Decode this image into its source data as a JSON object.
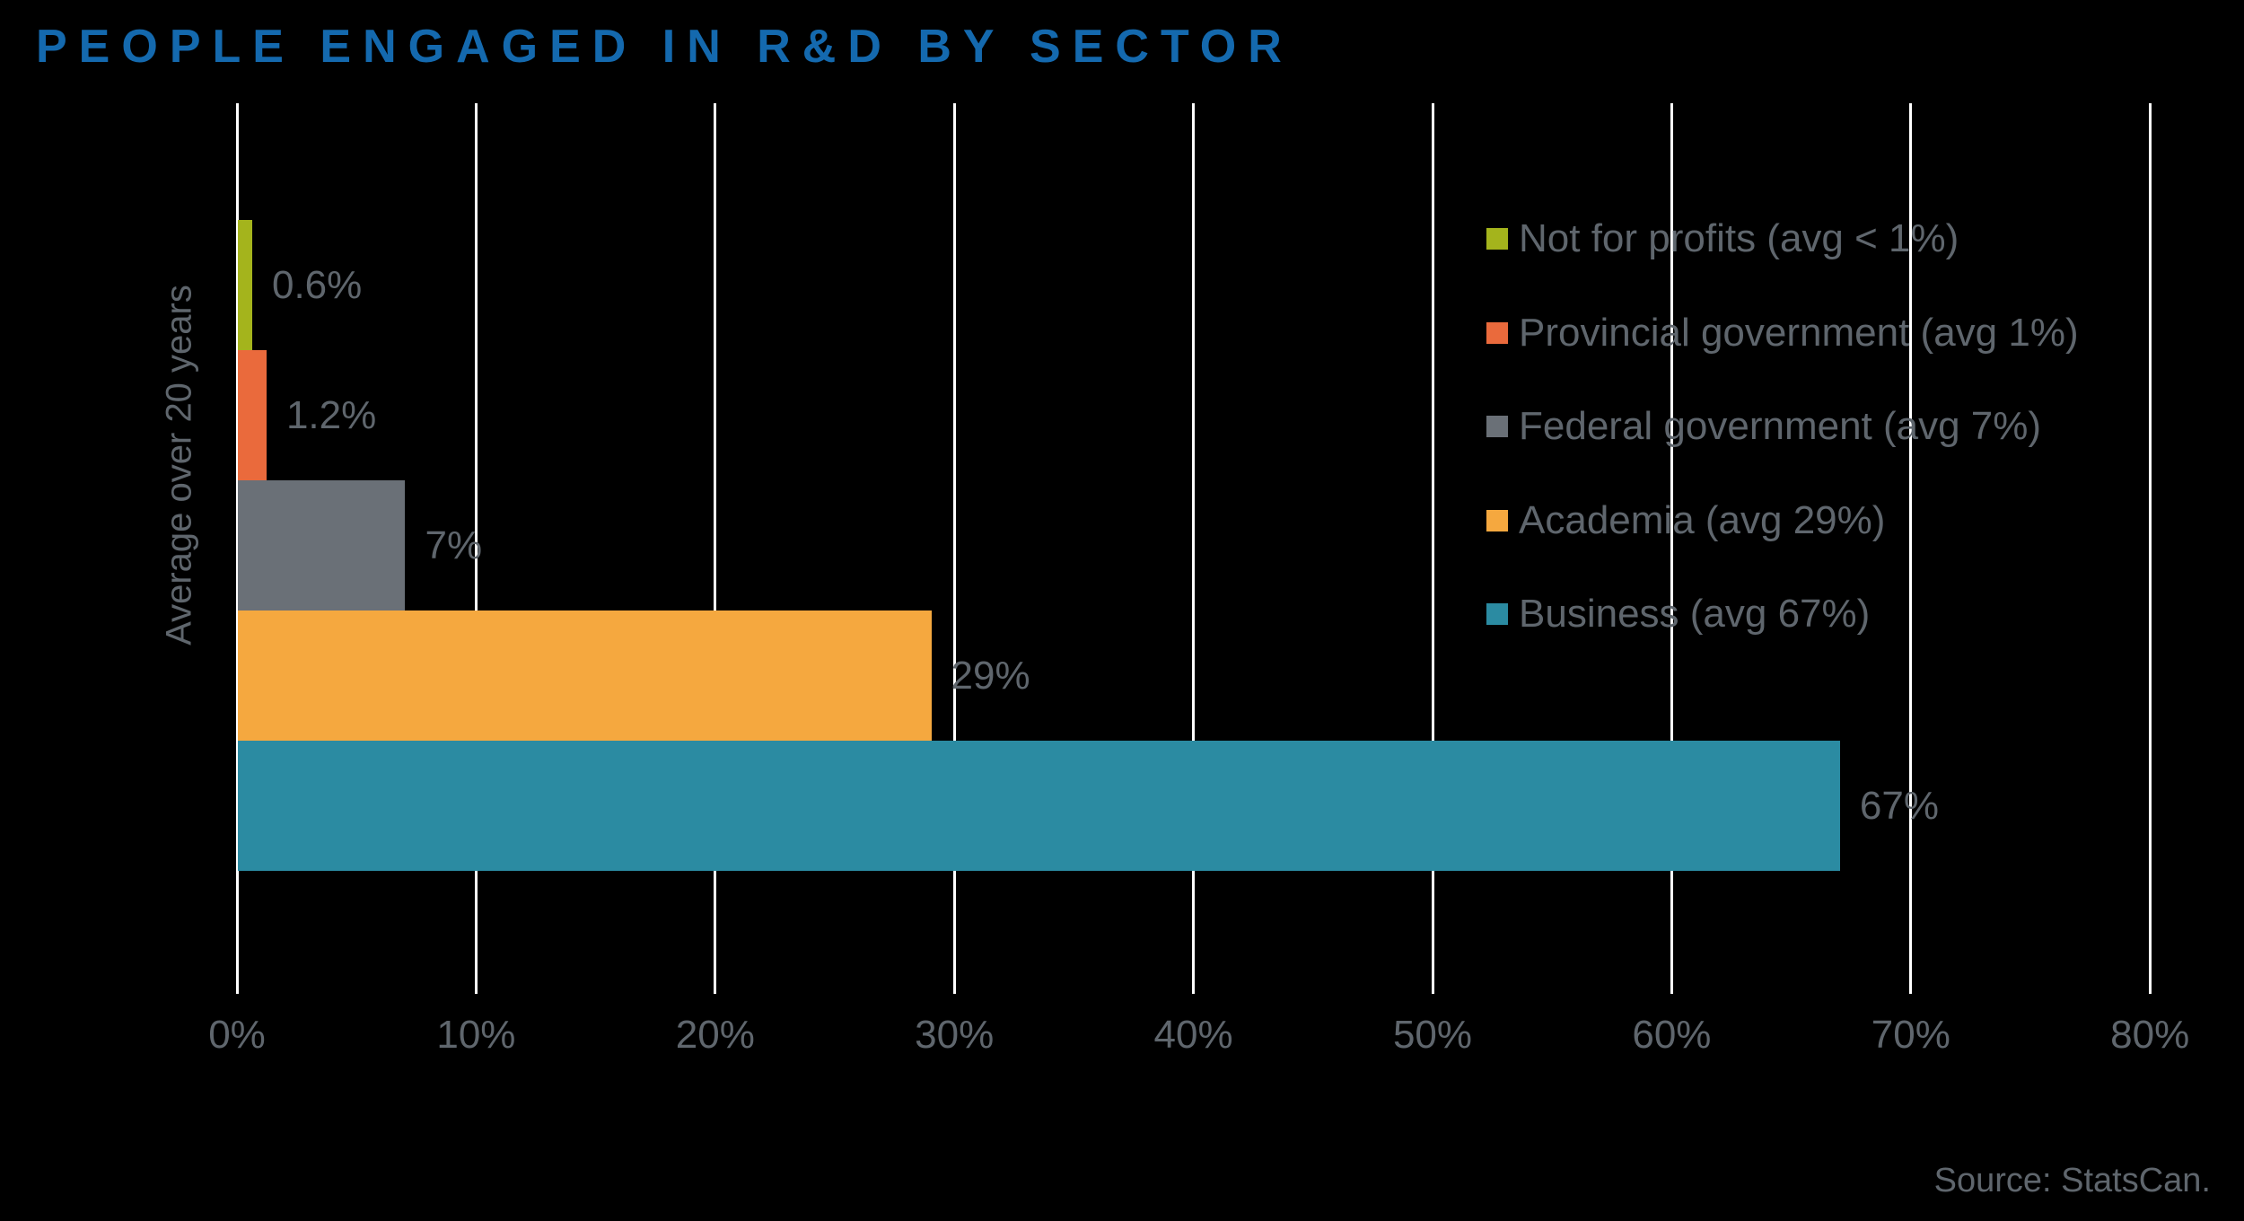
{
  "page": {
    "background_color": "#000000",
    "text_color": "#5f666d",
    "grid_color": "#ffffff",
    "title_color": "#1469ae"
  },
  "source_note": "Source: StatsCan.",
  "chart_data": {
    "type": "bar",
    "orientation": "horizontal",
    "title": "PEOPLE ENGAGED IN R&D BY SECTOR",
    "xlabel": "",
    "ylabel": "Average over 20 years",
    "xlim": [
      0,
      80
    ],
    "grid": true,
    "legend_position": "right-inside",
    "xticks": [
      {
        "value": 0,
        "label": "0%"
      },
      {
        "value": 10,
        "label": "10%"
      },
      {
        "value": 20,
        "label": "20%"
      },
      {
        "value": 30,
        "label": "30%"
      },
      {
        "value": 40,
        "label": "40%"
      },
      {
        "value": 50,
        "label": "50%"
      },
      {
        "value": 60,
        "label": "60%"
      },
      {
        "value": 70,
        "label": "70%"
      },
      {
        "value": 80,
        "label": "80%"
      }
    ],
    "series": [
      {
        "name": "Not for profits (avg < 1%)",
        "value": 0.6,
        "data_label": "0.6%",
        "color": "#a4b41c",
        "slug": "not-for-profits"
      },
      {
        "name": "Provincial government (avg 1%)",
        "value": 1.2,
        "data_label": "1.2%",
        "color": "#ea6a3c",
        "slug": "provincial-government"
      },
      {
        "name": "Federal government (avg 7%)",
        "value": 7,
        "data_label": "7%",
        "color": "#6a7077",
        "slug": "federal-government"
      },
      {
        "name": "Academia (avg 29%)",
        "value": 29,
        "data_label": "29%",
        "color": "#f5a83f",
        "slug": "academia"
      },
      {
        "name": "Business (avg 67%)",
        "value": 67,
        "data_label": "67%",
        "color": "#2b8ba2",
        "slug": "business"
      }
    ]
  }
}
